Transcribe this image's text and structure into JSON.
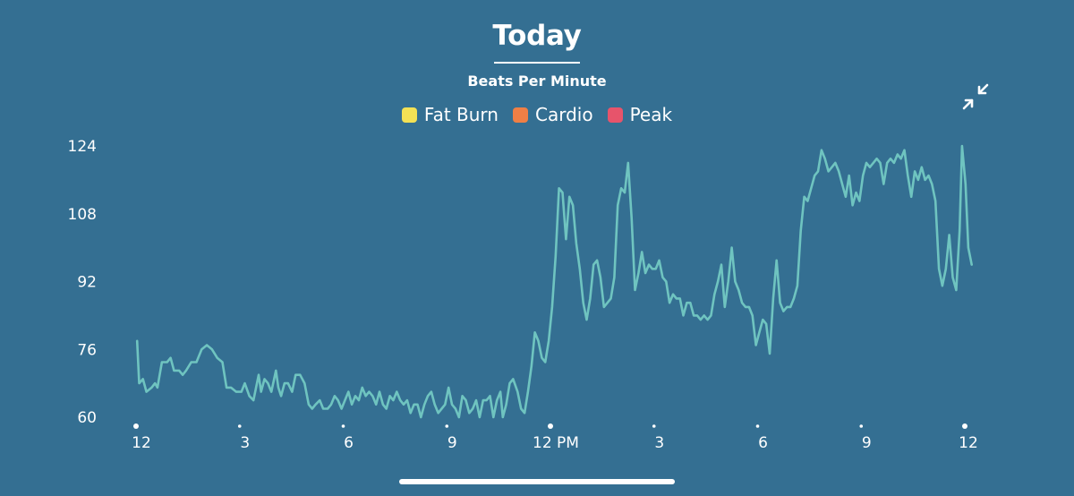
{
  "header": {
    "title": "Today",
    "subtitle": "Beats Per Minute"
  },
  "legend": [
    {
      "label": "Fat Burn",
      "color": "#f3e155"
    },
    {
      "label": "Cardio",
      "color": "#ef7f45"
    },
    {
      "label": "Peak",
      "color": "#e7546b"
    }
  ],
  "controls": {
    "collapse_icon": "collapse-arrows-icon"
  },
  "chart_data": {
    "type": "line",
    "title": "Today",
    "subtitle": "Beats Per Minute",
    "ylabel": "",
    "xlabel": "",
    "ylim": [
      60,
      124
    ],
    "xlim": [
      0,
      24
    ],
    "yticks": [
      60,
      76,
      92,
      108,
      124
    ],
    "xtick_values": [
      0,
      3,
      6,
      9,
      12,
      15,
      18,
      21,
      24
    ],
    "xtick_labels": [
      "12",
      "3",
      "6",
      "9",
      "12 PM",
      "3",
      "6",
      "9",
      "12"
    ],
    "major_dots": [
      0,
      12,
      24
    ],
    "grid": false,
    "line_color": "#6fc4c0",
    "series": [
      {
        "values": [
          [
            0.03,
            78
          ],
          [
            0.09,
            68
          ],
          [
            0.2,
            69
          ],
          [
            0.3,
            66
          ],
          [
            0.45,
            67
          ],
          [
            0.55,
            68
          ],
          [
            0.62,
            67
          ],
          [
            0.75,
            73
          ],
          [
            0.9,
            73
          ],
          [
            1.0,
            74
          ],
          [
            1.1,
            71
          ],
          [
            1.25,
            71
          ],
          [
            1.35,
            70
          ],
          [
            1.45,
            71
          ],
          [
            1.6,
            73
          ],
          [
            1.75,
            73
          ],
          [
            1.9,
            76
          ],
          [
            2.05,
            77
          ],
          [
            2.2,
            76
          ],
          [
            2.35,
            74
          ],
          [
            2.5,
            73
          ],
          [
            2.62,
            67
          ],
          [
            2.75,
            67
          ],
          [
            2.9,
            66
          ],
          [
            3.05,
            66
          ],
          [
            3.15,
            68
          ],
          [
            3.28,
            65
          ],
          [
            3.4,
            64
          ],
          [
            3.55,
            70
          ],
          [
            3.62,
            66
          ],
          [
            3.72,
            69
          ],
          [
            3.82,
            68
          ],
          [
            3.92,
            66
          ],
          [
            4.05,
            71
          ],
          [
            4.12,
            67
          ],
          [
            4.2,
            65
          ],
          [
            4.3,
            68
          ],
          [
            4.4,
            68
          ],
          [
            4.52,
            66
          ],
          [
            4.62,
            70
          ],
          [
            4.75,
            70
          ],
          [
            4.88,
            68
          ],
          [
            5.0,
            63
          ],
          [
            5.1,
            62
          ],
          [
            5.2,
            63
          ],
          [
            5.32,
            64
          ],
          [
            5.42,
            62
          ],
          [
            5.55,
            62
          ],
          [
            5.65,
            63
          ],
          [
            5.75,
            65
          ],
          [
            5.85,
            64
          ],
          [
            5.95,
            62
          ],
          [
            6.05,
            64
          ],
          [
            6.15,
            66
          ],
          [
            6.25,
            63
          ],
          [
            6.35,
            65
          ],
          [
            6.45,
            64
          ],
          [
            6.55,
            67
          ],
          [
            6.65,
            65
          ],
          [
            6.75,
            66
          ],
          [
            6.85,
            65
          ],
          [
            6.95,
            63
          ],
          [
            7.05,
            66
          ],
          [
            7.15,
            63
          ],
          [
            7.25,
            62
          ],
          [
            7.35,
            65
          ],
          [
            7.45,
            64
          ],
          [
            7.55,
            66
          ],
          [
            7.65,
            64
          ],
          [
            7.75,
            63
          ],
          [
            7.85,
            64
          ],
          [
            7.95,
            61
          ],
          [
            8.05,
            63
          ],
          [
            8.15,
            63
          ],
          [
            8.25,
            60
          ],
          [
            8.35,
            63
          ],
          [
            8.45,
            65
          ],
          [
            8.55,
            66
          ],
          [
            8.65,
            63
          ],
          [
            8.75,
            61
          ],
          [
            8.85,
            62
          ],
          [
            8.95,
            63
          ],
          [
            9.05,
            67
          ],
          [
            9.15,
            63
          ],
          [
            9.25,
            62
          ],
          [
            9.35,
            60
          ],
          [
            9.45,
            65
          ],
          [
            9.55,
            64
          ],
          [
            9.65,
            61
          ],
          [
            9.75,
            62
          ],
          [
            9.85,
            64
          ],
          [
            9.95,
            60
          ],
          [
            10.05,
            64
          ],
          [
            10.15,
            64
          ],
          [
            10.25,
            65
          ],
          [
            10.35,
            60
          ],
          [
            10.45,
            64
          ],
          [
            10.55,
            66
          ],
          [
            10.62,
            60
          ],
          [
            10.72,
            63
          ],
          [
            10.82,
            68
          ],
          [
            10.92,
            69
          ],
          [
            11.05,
            66
          ],
          [
            11.15,
            62
          ],
          [
            11.25,
            61
          ],
          [
            11.35,
            66
          ],
          [
            11.45,
            72
          ],
          [
            11.55,
            80
          ],
          [
            11.65,
            78
          ],
          [
            11.75,
            74
          ],
          [
            11.85,
            73
          ],
          [
            11.95,
            78
          ],
          [
            12.05,
            86
          ],
          [
            12.15,
            98
          ],
          [
            12.25,
            114
          ],
          [
            12.35,
            113
          ],
          [
            12.45,
            102
          ],
          [
            12.55,
            112
          ],
          [
            12.65,
            110
          ],
          [
            12.75,
            101
          ],
          [
            12.85,
            95
          ],
          [
            12.95,
            87
          ],
          [
            13.05,
            83
          ],
          [
            13.15,
            88
          ],
          [
            13.25,
            96
          ],
          [
            13.35,
            97
          ],
          [
            13.45,
            93
          ],
          [
            13.55,
            86
          ],
          [
            13.65,
            87
          ],
          [
            13.75,
            88
          ],
          [
            13.85,
            93
          ],
          [
            13.95,
            110
          ],
          [
            14.05,
            114
          ],
          [
            14.15,
            113
          ],
          [
            14.25,
            120
          ],
          [
            14.35,
            107
          ],
          [
            14.45,
            90
          ],
          [
            14.55,
            94
          ],
          [
            14.65,
            99
          ],
          [
            14.75,
            94
          ],
          [
            14.85,
            96
          ],
          [
            14.95,
            95
          ],
          [
            15.05,
            95
          ],
          [
            15.15,
            97
          ],
          [
            15.25,
            93
          ],
          [
            15.35,
            92
          ],
          [
            15.45,
            87
          ],
          [
            15.55,
            89
          ],
          [
            15.65,
            88
          ],
          [
            15.75,
            88
          ],
          [
            15.85,
            84
          ],
          [
            15.95,
            87
          ],
          [
            16.05,
            87
          ],
          [
            16.15,
            84
          ],
          [
            16.25,
            84
          ],
          [
            16.35,
            83
          ],
          [
            16.45,
            84
          ],
          [
            16.55,
            83
          ],
          [
            16.65,
            84
          ],
          [
            16.75,
            89
          ],
          [
            16.85,
            92
          ],
          [
            16.95,
            96
          ],
          [
            17.05,
            86
          ],
          [
            17.15,
            92
          ],
          [
            17.25,
            100
          ],
          [
            17.35,
            92
          ],
          [
            17.45,
            90
          ],
          [
            17.55,
            87
          ],
          [
            17.65,
            86
          ],
          [
            17.75,
            86
          ],
          [
            17.85,
            84
          ],
          [
            17.95,
            77
          ],
          [
            18.05,
            80
          ],
          [
            18.15,
            83
          ],
          [
            18.25,
            82
          ],
          [
            18.35,
            75
          ],
          [
            18.45,
            88
          ],
          [
            18.55,
            97
          ],
          [
            18.65,
            87
          ],
          [
            18.75,
            85
          ],
          [
            18.85,
            86
          ],
          [
            18.95,
            86
          ],
          [
            19.05,
            88
          ],
          [
            19.15,
            91
          ],
          [
            19.25,
            104
          ],
          [
            19.35,
            112
          ],
          [
            19.45,
            111
          ],
          [
            19.55,
            114
          ],
          [
            19.65,
            117
          ],
          [
            19.75,
            118
          ],
          [
            19.85,
            123
          ],
          [
            19.95,
            121
          ],
          [
            20.05,
            118
          ],
          [
            20.15,
            119
          ],
          [
            20.25,
            120
          ],
          [
            20.35,
            118
          ],
          [
            20.45,
            115
          ],
          [
            20.55,
            112
          ],
          [
            20.65,
            117
          ],
          [
            20.75,
            110
          ],
          [
            20.85,
            113
          ],
          [
            20.95,
            111
          ],
          [
            21.05,
            117
          ],
          [
            21.15,
            120
          ],
          [
            21.25,
            119
          ],
          [
            21.35,
            120
          ],
          [
            21.45,
            121
          ],
          [
            21.55,
            120
          ],
          [
            21.65,
            115
          ],
          [
            21.75,
            120
          ],
          [
            21.85,
            121
          ],
          [
            21.95,
            120
          ],
          [
            22.05,
            122
          ],
          [
            22.15,
            121
          ],
          [
            22.25,
            123
          ],
          [
            22.35,
            117
          ],
          [
            22.45,
            112
          ],
          [
            22.55,
            118
          ],
          [
            22.65,
            116
          ],
          [
            22.75,
            119
          ],
          [
            22.85,
            116
          ],
          [
            22.95,
            117
          ],
          [
            23.05,
            115
          ],
          [
            23.15,
            111
          ],
          [
            23.25,
            95
          ],
          [
            23.35,
            91
          ],
          [
            23.45,
            95
          ],
          [
            23.55,
            103
          ],
          [
            23.65,
            93
          ],
          [
            23.75,
            90
          ],
          [
            23.85,
            104
          ],
          [
            23.92,
            124
          ],
          [
            24.02,
            115
          ],
          [
            24.1,
            100
          ],
          [
            24.2,
            96
          ]
        ]
      }
    ]
  }
}
